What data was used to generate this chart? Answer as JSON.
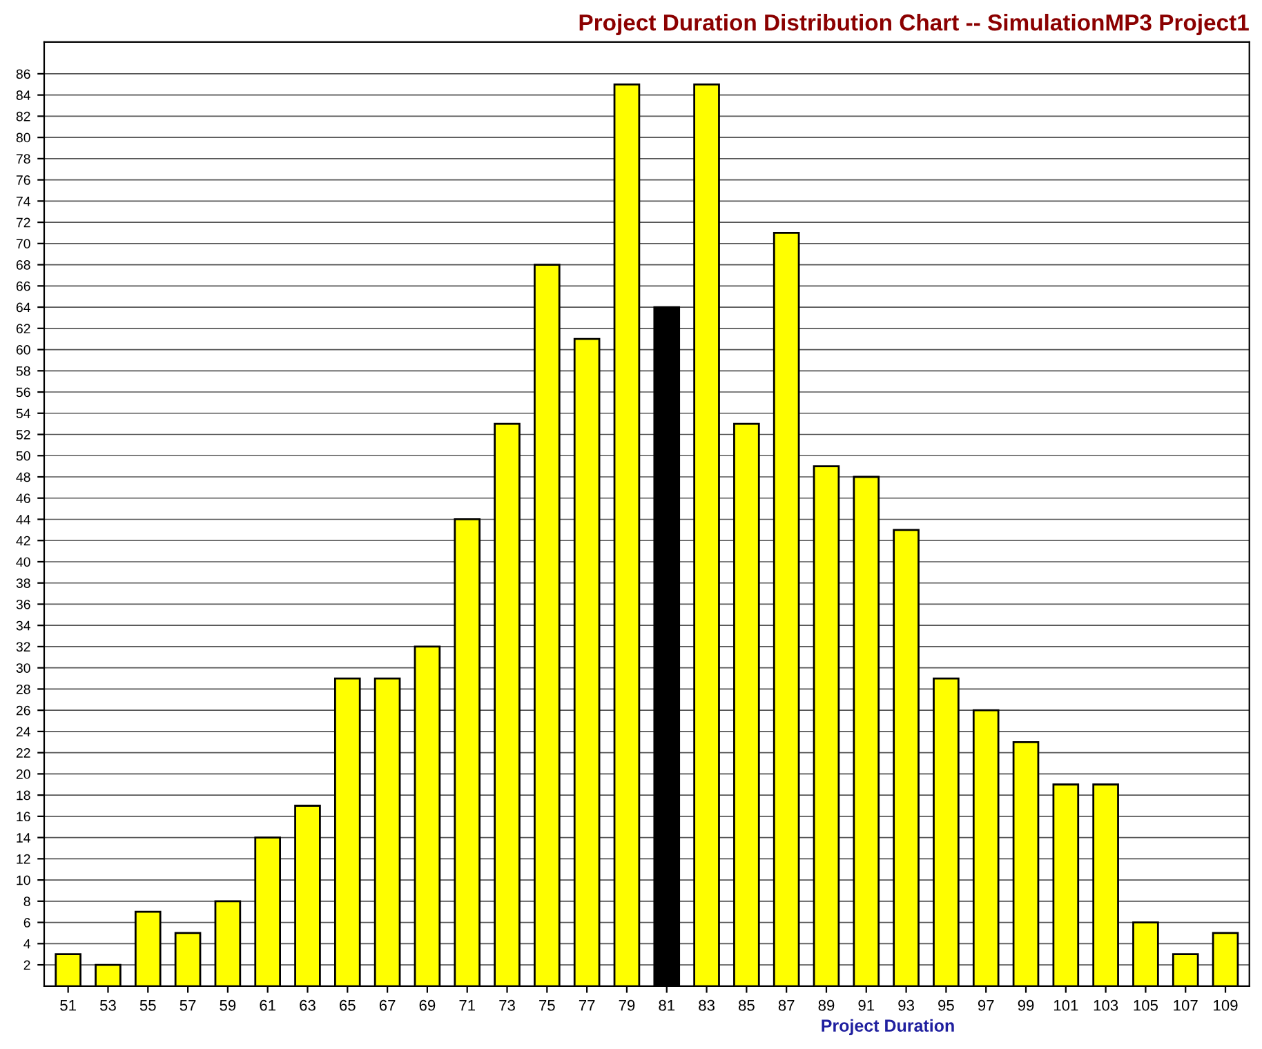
{
  "chart_data": {
    "type": "bar",
    "title": "Project Duration Distribution Chart -- SimulationMP3 Project1",
    "xlabel": "Project Duration",
    "categories": [
      "51",
      "53",
      "55",
      "57",
      "59",
      "61",
      "63",
      "65",
      "67",
      "69",
      "71",
      "73",
      "75",
      "77",
      "79",
      "81",
      "83",
      "85",
      "87",
      "89",
      "91",
      "93",
      "95",
      "97",
      "99",
      "101",
      "103",
      "105",
      "107",
      "109"
    ],
    "values": [
      3,
      2,
      7,
      5,
      8,
      14,
      17,
      29,
      29,
      32,
      44,
      53,
      68,
      61,
      85,
      64,
      85,
      53,
      71,
      49,
      48,
      43,
      29,
      26,
      23,
      19,
      19,
      6,
      3,
      5
    ],
    "colors": [
      "#ffff00",
      "#ffff00",
      "#ffff00",
      "#ffff00",
      "#ffff00",
      "#ffff00",
      "#ffff00",
      "#ffff00",
      "#ffff00",
      "#ffff00",
      "#ffff00",
      "#ffff00",
      "#ffff00",
      "#ffff00",
      "#ffff00",
      "#000000",
      "#ffff00",
      "#ffff00",
      "#ffff00",
      "#ffff00",
      "#ffff00",
      "#ffff00",
      "#ffff00",
      "#ffff00",
      "#ffff00",
      "#ffff00",
      "#ffff00",
      "#ffff00",
      "#ffff00",
      "#ffff00"
    ],
    "ylim": [
      0,
      89
    ],
    "yticks": [
      2,
      4,
      6,
      8,
      10,
      12,
      14,
      16,
      18,
      20,
      22,
      24,
      26,
      28,
      30,
      32,
      34,
      36,
      38,
      40,
      42,
      44,
      46,
      48,
      50,
      52,
      54,
      56,
      58,
      60,
      62,
      64,
      66,
      68,
      70,
      72,
      74,
      76,
      78,
      80,
      82,
      84,
      86
    ],
    "grid": "y"
  }
}
